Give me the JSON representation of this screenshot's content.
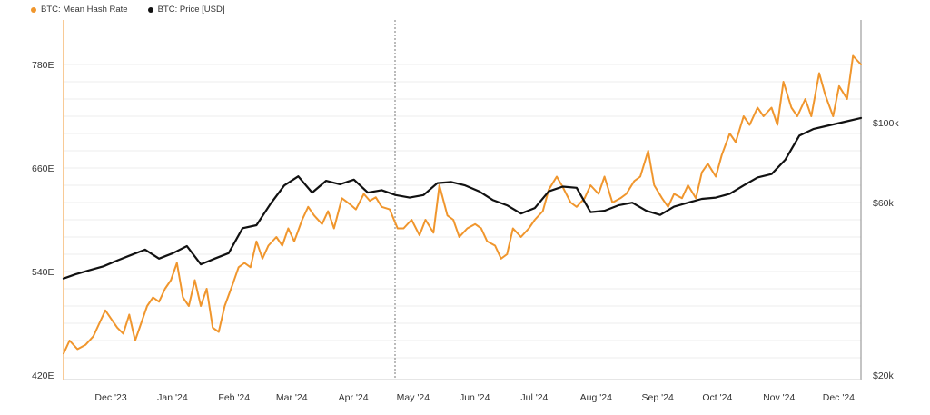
{
  "chart_data": {
    "type": "line",
    "title": "",
    "legend_position": "top-left",
    "grid": "horizontal",
    "x_ticks": [
      "Dec '23",
      "Jan '24",
      "Feb '24",
      "Mar '24",
      "Apr '24",
      "May '24",
      "Jun '24",
      "Jul '24",
      "Aug '24",
      "Sep '24",
      "Oct '24",
      "Nov '24",
      "Dec '24"
    ],
    "x_range": [
      "2023-11-15",
      "2024-12-20"
    ],
    "y_left": {
      "label": "",
      "range": [
        420,
        800
      ],
      "ticks": [
        "420E",
        "540E",
        "660E",
        "780E"
      ],
      "tick_values": [
        420,
        540,
        660,
        780
      ]
    },
    "y_right": {
      "label": "",
      "scale": "log",
      "range": [
        20000,
        150000
      ],
      "ticks": [
        "$20k",
        "$60k",
        "$100k"
      ],
      "tick_values": [
        20000,
        60000,
        100000
      ]
    },
    "series": [
      {
        "name": "BTC: Mean Hash Rate",
        "axis": "left",
        "color": "#f0962d",
        "x": [
          "2023-11-15",
          "2023-11-18",
          "2023-11-22",
          "2023-11-26",
          "2023-11-30",
          "2023-12-03",
          "2023-12-06",
          "2023-12-09",
          "2023-12-12",
          "2023-12-15",
          "2023-12-18",
          "2023-12-21",
          "2023-12-24",
          "2023-12-27",
          "2023-12-30",
          "2024-01-02",
          "2024-01-05",
          "2024-01-08",
          "2024-01-11",
          "2024-01-14",
          "2024-01-17",
          "2024-01-20",
          "2024-01-23",
          "2024-01-26",
          "2024-01-29",
          "2024-02-01",
          "2024-02-04",
          "2024-02-08",
          "2024-02-11",
          "2024-02-14",
          "2024-02-17",
          "2024-02-20",
          "2024-02-23",
          "2024-02-26",
          "2024-03-01",
          "2024-03-04",
          "2024-03-07",
          "2024-03-10",
          "2024-03-14",
          "2024-03-17",
          "2024-03-20",
          "2024-03-24",
          "2024-03-27",
          "2024-03-30",
          "2024-04-03",
          "2024-04-07",
          "2024-04-10",
          "2024-04-14",
          "2024-04-17",
          "2024-04-20",
          "2024-04-23",
          "2024-04-27",
          "2024-05-01",
          "2024-05-04",
          "2024-05-08",
          "2024-05-12",
          "2024-05-15",
          "2024-05-19",
          "2024-05-22",
          "2024-05-26",
          "2024-05-29",
          "2024-06-01",
          "2024-06-05",
          "2024-06-09",
          "2024-06-12",
          "2024-06-15",
          "2024-06-19",
          "2024-06-22",
          "2024-06-25",
          "2024-06-28",
          "2024-07-02",
          "2024-07-06",
          "2024-07-09",
          "2024-07-13",
          "2024-07-16",
          "2024-07-20",
          "2024-07-23",
          "2024-07-27",
          "2024-07-30",
          "2024-08-03",
          "2024-08-06",
          "2024-08-10",
          "2024-08-13",
          "2024-08-17",
          "2024-08-21",
          "2024-08-24",
          "2024-08-28",
          "2024-08-31",
          "2024-09-04",
          "2024-09-07",
          "2024-09-11",
          "2024-09-14",
          "2024-09-17",
          "2024-09-21",
          "2024-09-24",
          "2024-09-28",
          "2024-10-01",
          "2024-10-04",
          "2024-10-08",
          "2024-10-11",
          "2024-10-15",
          "2024-10-18",
          "2024-10-22",
          "2024-10-25",
          "2024-10-29",
          "2024-11-01",
          "2024-11-05",
          "2024-11-08",
          "2024-11-11",
          "2024-11-15",
          "2024-11-18",
          "2024-11-22",
          "2024-11-25",
          "2024-11-29",
          "2024-12-02",
          "2024-12-06",
          "2024-12-09",
          "2024-12-13",
          "2024-12-16",
          "2024-12-20"
        ],
        "values": [
          445,
          460,
          450,
          455,
          465,
          480,
          495,
          485,
          475,
          468,
          490,
          460,
          480,
          500,
          510,
          505,
          520,
          530,
          550,
          510,
          500,
          530,
          500,
          520,
          475,
          470,
          500,
          525,
          545,
          550,
          545,
          575,
          555,
          570,
          580,
          570,
          590,
          575,
          600,
          615,
          605,
          595,
          610,
          590,
          625,
          618,
          612,
          630,
          622,
          626,
          615,
          612,
          590,
          590,
          600,
          582,
          600,
          585,
          640,
          605,
          600,
          580,
          590,
          595,
          590,
          575,
          570,
          555,
          560,
          590,
          580,
          590,
          600,
          610,
          635,
          650,
          638,
          620,
          615,
          625,
          640,
          630,
          650,
          620,
          625,
          630,
          645,
          650,
          680,
          640,
          625,
          615,
          630,
          625,
          640,
          625,
          655,
          665,
          650,
          675,
          700,
          690,
          720,
          710,
          730,
          720,
          730,
          710,
          760,
          730,
          720,
          740,
          720,
          770,
          745,
          720,
          755,
          740,
          790,
          780
        ]
      },
      {
        "name": "BTC: Price [USD]",
        "axis": "right",
        "color": "#111111",
        "x": [
          "2023-11-15",
          "2023-11-21",
          "2023-11-28",
          "2023-12-05",
          "2023-12-12",
          "2023-12-19",
          "2023-12-26",
          "2024-01-02",
          "2024-01-09",
          "2024-01-16",
          "2024-01-23",
          "2024-01-30",
          "2024-02-06",
          "2024-02-13",
          "2024-02-20",
          "2024-02-27",
          "2024-03-05",
          "2024-03-12",
          "2024-03-19",
          "2024-03-26",
          "2024-04-02",
          "2024-04-09",
          "2024-04-16",
          "2024-04-23",
          "2024-04-30",
          "2024-05-07",
          "2024-05-14",
          "2024-05-21",
          "2024-05-28",
          "2024-06-04",
          "2024-06-11",
          "2024-06-18",
          "2024-06-25",
          "2024-07-02",
          "2024-07-09",
          "2024-07-16",
          "2024-07-23",
          "2024-07-30",
          "2024-08-06",
          "2024-08-13",
          "2024-08-20",
          "2024-08-27",
          "2024-09-03",
          "2024-09-10",
          "2024-09-17",
          "2024-09-24",
          "2024-10-01",
          "2024-10-08",
          "2024-10-15",
          "2024-10-22",
          "2024-10-29",
          "2024-11-05",
          "2024-11-12",
          "2024-11-19",
          "2024-11-26",
          "2024-12-03",
          "2024-12-10",
          "2024-12-20"
        ],
        "values": [
          37000,
          38000,
          39000,
          40000,
          41500,
          43000,
          44500,
          42000,
          43500,
          45500,
          40500,
          42000,
          43500,
          51000,
          52000,
          59500,
          67000,
          71000,
          64000,
          69000,
          67500,
          69500,
          64000,
          65000,
          63000,
          62000,
          63000,
          68000,
          68500,
          67000,
          64500,
          61000,
          59000,
          56000,
          58000,
          64500,
          66500,
          66000,
          56500,
          57000,
          59000,
          60000,
          57000,
          55500,
          58500,
          60000,
          61500,
          62000,
          63500,
          67000,
          70500,
          72000,
          79000,
          92000,
          96000,
          98000,
          100000,
          103000
        ]
      }
    ]
  }
}
